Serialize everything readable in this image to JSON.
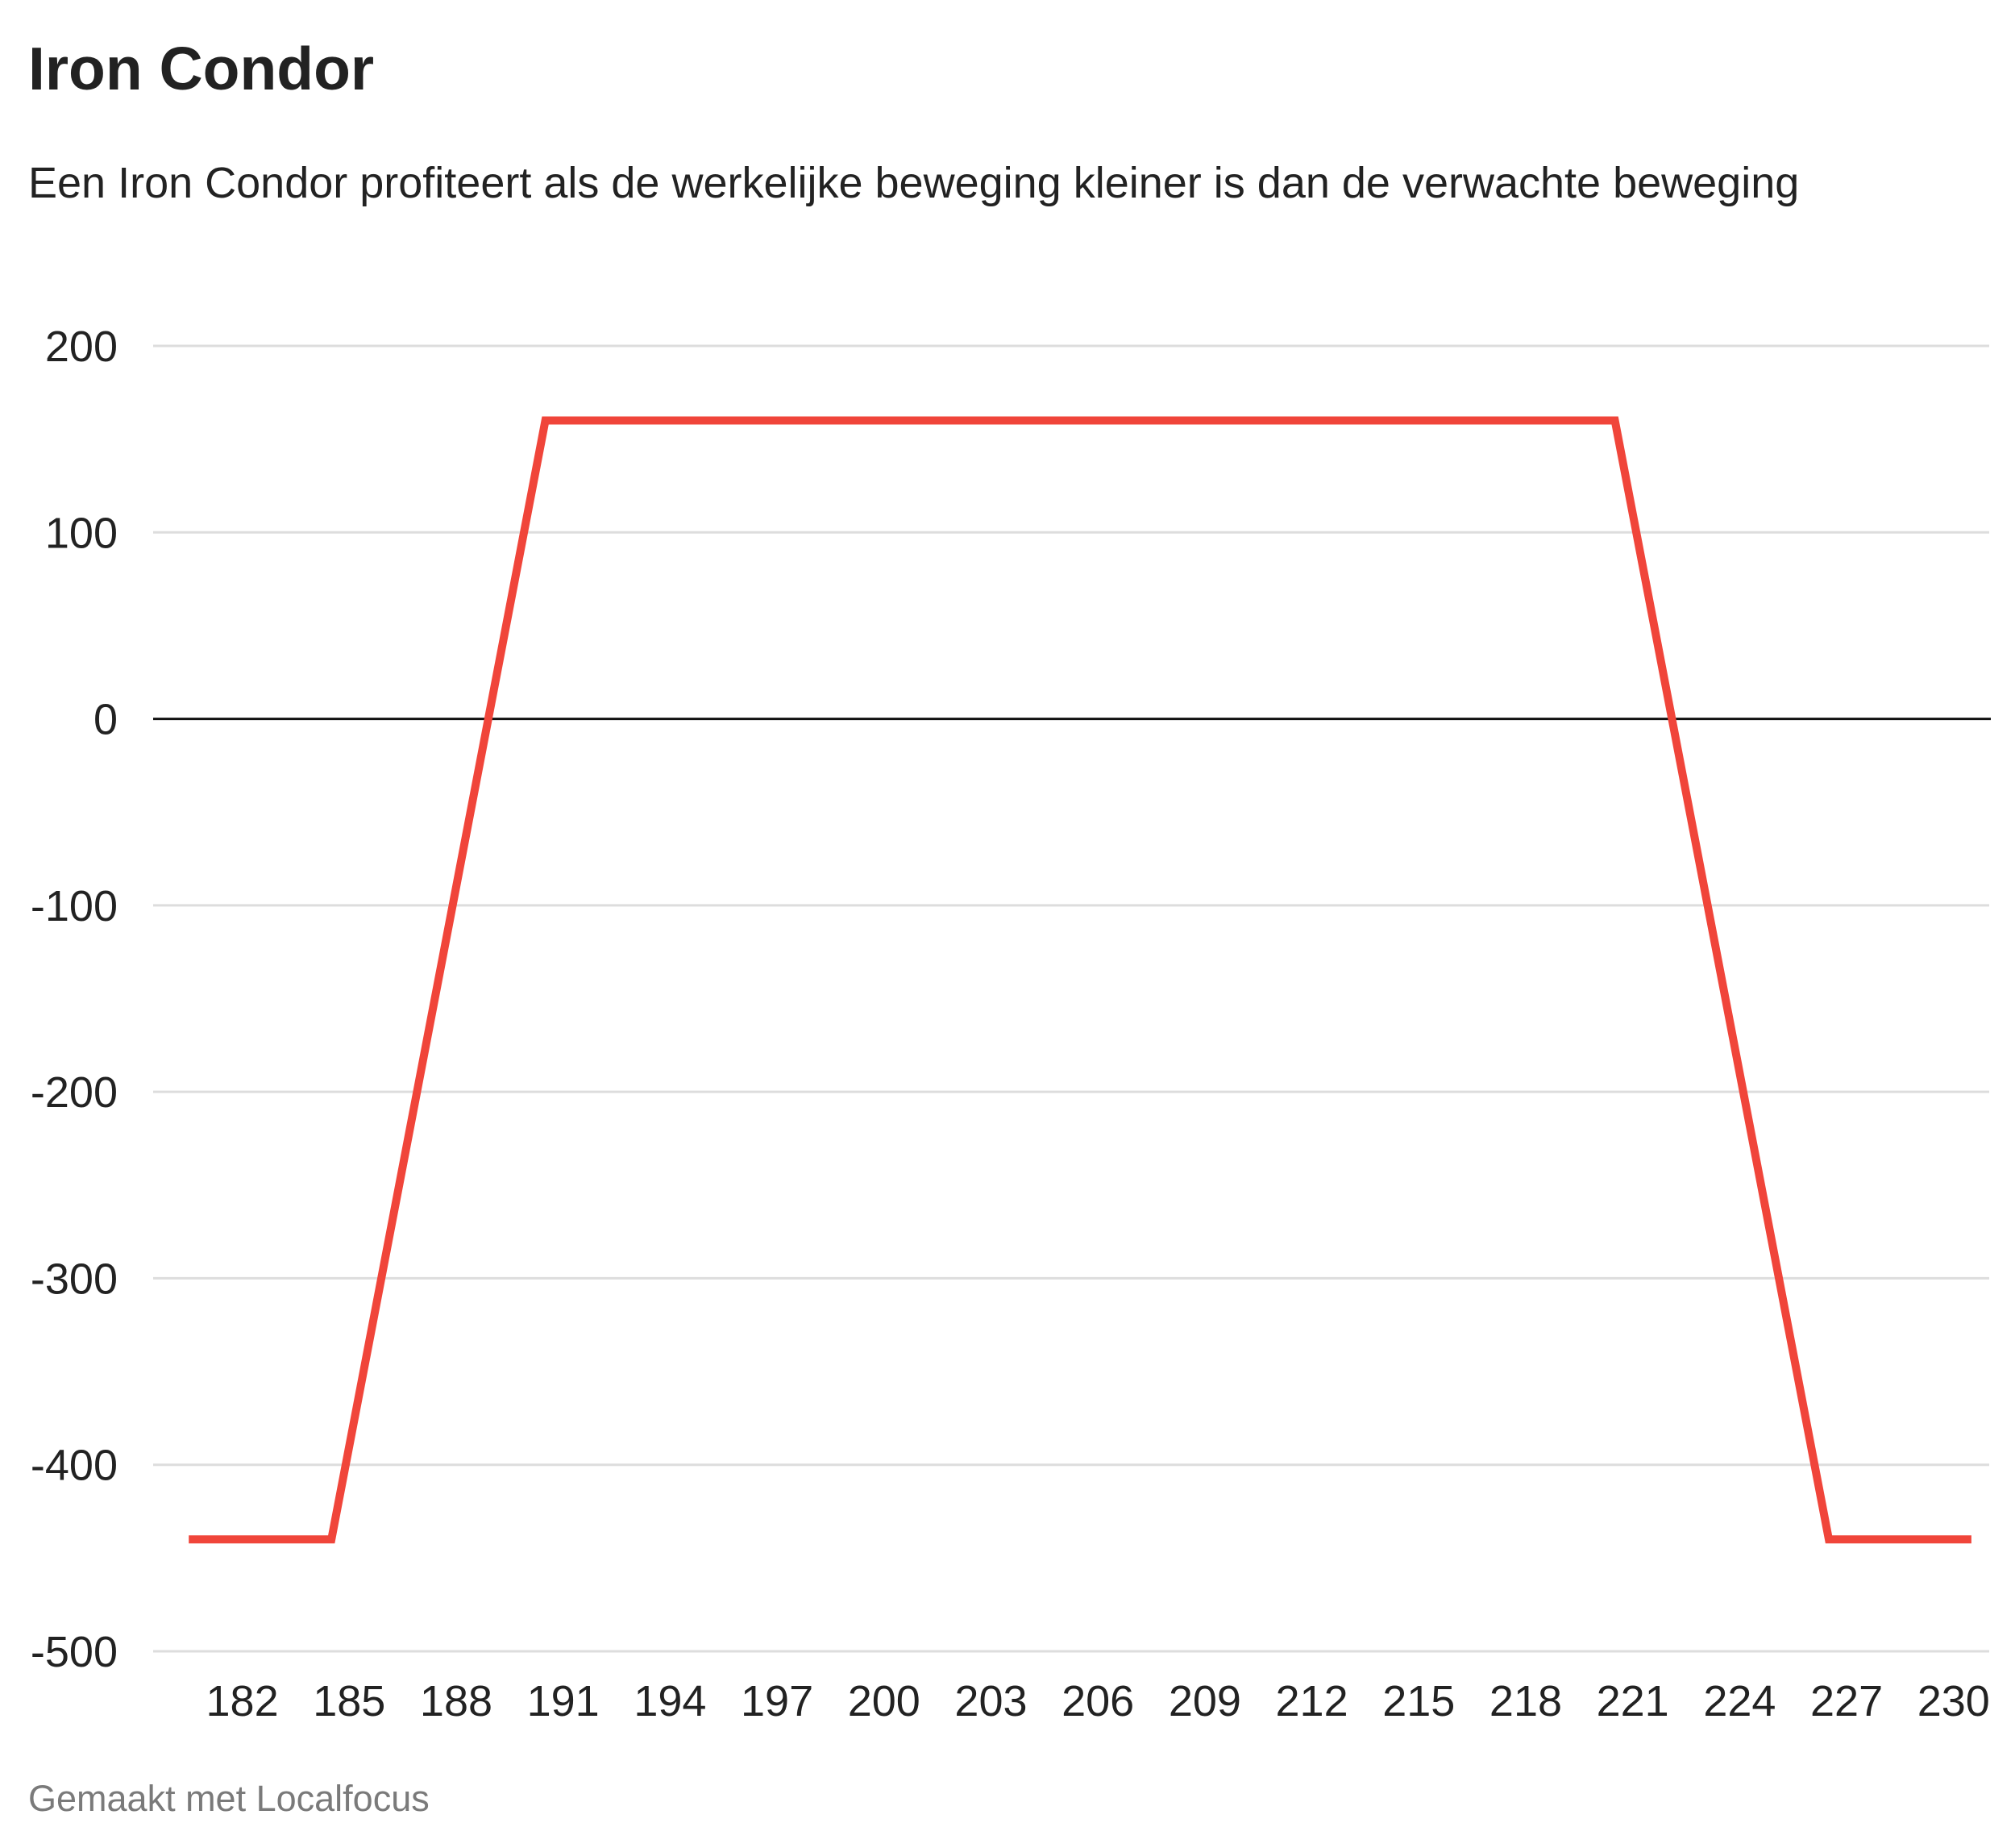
{
  "header": {
    "title": "Iron Condor",
    "subtitle": "Een Iron Condor profiteert als de werkelijke beweging kleiner is dan de verwachte beweging"
  },
  "footer": {
    "credit": "Gemaakt met Localfocus"
  },
  "colors": {
    "line": "#f0453a",
    "grid": "#dddddd",
    "zero_line": "#111111",
    "text": "#222222",
    "footer_text": "#7a7a7a"
  },
  "chart_data": {
    "type": "line",
    "title": "Iron Condor",
    "subtitle": "Een Iron Condor profiteert als de werkelijke beweging kleiner is dan de verwachte beweging",
    "xlabel": "",
    "ylabel": "",
    "xlim": [
      179.5,
      231
    ],
    "ylim": [
      -500,
      200
    ],
    "x_ticks": [
      182,
      185,
      188,
      191,
      194,
      197,
      200,
      203,
      206,
      209,
      212,
      215,
      218,
      221,
      224,
      227,
      230
    ],
    "y_ticks": [
      200,
      100,
      0,
      -100,
      -200,
      -300,
      -400,
      -500
    ],
    "grid": true,
    "legend": "none",
    "series": [
      {
        "color": "#f0453a",
        "points": [
          {
            "x": 180.5,
            "y": -440
          },
          {
            "x": 184.5,
            "y": -440
          },
          {
            "x": 190.5,
            "y": 160
          },
          {
            "x": 220.5,
            "y": 160
          },
          {
            "x": 226.5,
            "y": -440
          },
          {
            "x": 230.5,
            "y": -440
          }
        ]
      }
    ]
  }
}
